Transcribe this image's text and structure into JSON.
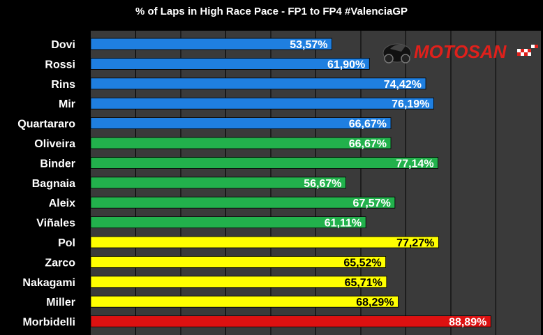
{
  "chart_data": {
    "type": "bar",
    "orientation": "horizontal",
    "title": "% of Laps in High Race Pace - FP1 to FP4 #ValenciaGP",
    "xlabel": "",
    "ylabel": "",
    "xlim": [
      0,
      100
    ],
    "grid": true,
    "categories": [
      "Dovi",
      "Rossi",
      "Rins",
      "Mir",
      "Quartararo",
      "Oliveira",
      "Binder",
      "Bagnaia",
      "Aleix",
      "Viñales",
      "Pol",
      "Zarco",
      "Nakagami",
      "Miller",
      "Morbidelli"
    ],
    "values": [
      53.57,
      61.9,
      74.42,
      76.19,
      66.67,
      66.67,
      77.14,
      56.67,
      67.57,
      61.11,
      77.27,
      65.52,
      65.71,
      68.29,
      88.89
    ],
    "value_labels": [
      "53,57%",
      "61,90%",
      "74,42%",
      "76,19%",
      "66,67%",
      "66,67%",
      "77,14%",
      "56,67%",
      "67,57%",
      "61,11%",
      "77,27%",
      "65,52%",
      "65,71%",
      "68,29%",
      "88,89%"
    ],
    "bar_colors": [
      "#1f7fe0",
      "#1f7fe0",
      "#1f7fe0",
      "#1f7fe0",
      "#1f7fe0",
      "#22b14c",
      "#22b14c",
      "#22b14c",
      "#22b14c",
      "#22b14c",
      "#ffff00",
      "#ffff00",
      "#ffff00",
      "#ffff00",
      "#dd1111"
    ],
    "label_colors": [
      "#ffffff",
      "#ffffff",
      "#ffffff",
      "#ffffff",
      "#ffffff",
      "#ffffff",
      "#ffffff",
      "#ffffff",
      "#ffffff",
      "#ffffff",
      "#000000",
      "#000000",
      "#000000",
      "#000000",
      "#ffffff"
    ]
  },
  "colors": {
    "background": "#000000",
    "plot_area": "#3a3a3a",
    "gridline": "#000000"
  },
  "logo": {
    "text": "MOTOSAN"
  }
}
